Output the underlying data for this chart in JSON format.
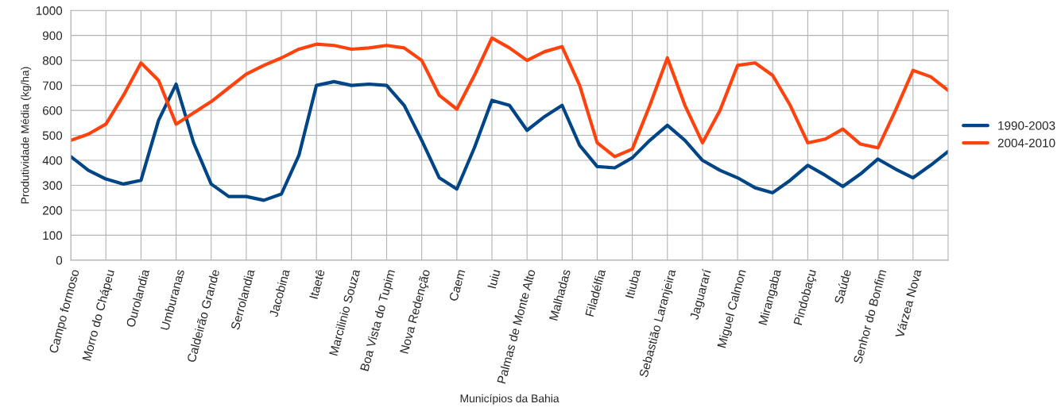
{
  "chart_data": {
    "type": "line",
    "xlabel": "Municípios da Bahia",
    "ylabel": "Produtividade Média (kg/ha)",
    "categories": [
      "Campo formoso",
      null,
      "Morro do Chápeu",
      null,
      "Ourolandia",
      null,
      "Umburanas",
      null,
      "Caldeirão Grande",
      null,
      "Serrolandia",
      null,
      "Jacobina",
      null,
      "Itaetê",
      null,
      "Marcilinio Souza",
      null,
      "Boa Vista do Tupim",
      null,
      "Nova Redenção",
      null,
      "Caem",
      null,
      "Iuiu",
      null,
      "Palmas de Monte Alto",
      null,
      "Malhadas",
      null,
      "Filadélfia",
      null,
      "Itiuba",
      null,
      "Sebastião Laranjeira",
      null,
      "Jaguararí",
      null,
      "Miguel Calmon",
      null,
      "Mirangaba",
      null,
      "Pindobaçu",
      null,
      "Saúde",
      null,
      "Senhor do Bonfim",
      null,
      "Várzea Nova",
      null,
      null
    ],
    "series": [
      {
        "name": "1990-2003",
        "color": "#004586",
        "values": [
          415,
          360,
          325,
          305,
          320,
          560,
          705,
          470,
          305,
          255,
          255,
          240,
          265,
          420,
          700,
          715,
          700,
          705,
          700,
          620,
          480,
          330,
          285,
          450,
          640,
          620,
          520,
          575,
          620,
          460,
          375,
          370,
          410,
          480,
          540,
          480,
          400,
          360,
          330,
          290,
          270,
          320,
          380,
          340,
          295,
          345,
          405,
          365,
          330,
          380,
          435
        ]
      },
      {
        "name": "2004-2010",
        "color": "#ff420e",
        "values": [
          480,
          505,
          545,
          660,
          790,
          720,
          545,
          590,
          635,
          690,
          745,
          780,
          810,
          845,
          865,
          860,
          845,
          850,
          860,
          850,
          800,
          660,
          605,
          740,
          890,
          850,
          800,
          835,
          855,
          700,
          470,
          415,
          445,
          620,
          810,
          620,
          470,
          600,
          780,
          790,
          740,
          620,
          470,
          485,
          525,
          465,
          450,
          600,
          760,
          735,
          680
        ]
      }
    ],
    "ylim": [
      0,
      1000
    ],
    "yticks": [
      0,
      100,
      200,
      300,
      400,
      500,
      600,
      700,
      800,
      900,
      1000
    ],
    "grid": true,
    "legend": "right",
    "marker": "none",
    "line_style": "solid"
  }
}
